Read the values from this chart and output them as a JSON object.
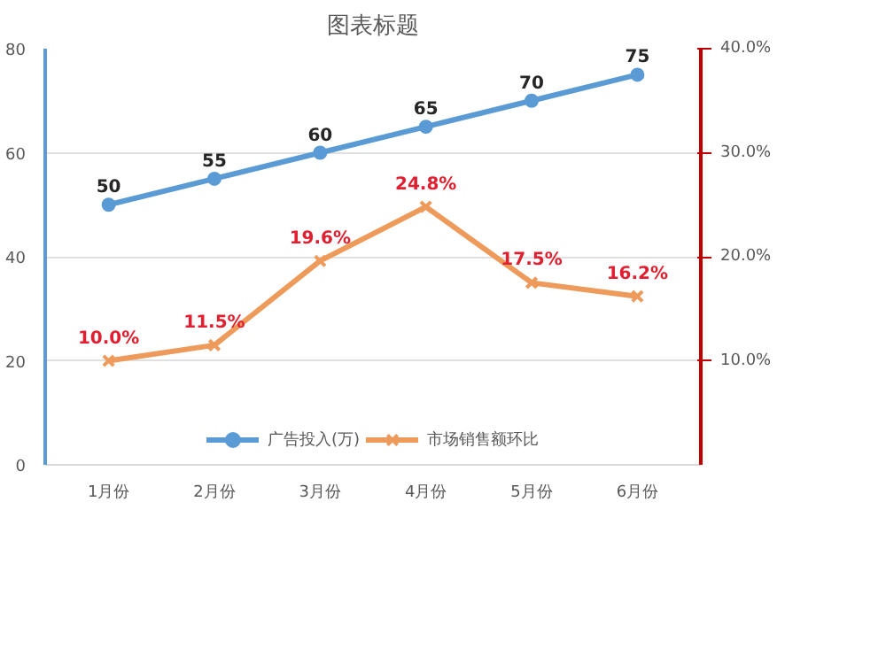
{
  "chart_data": {
    "type": "line",
    "title": "图表标题",
    "categories": [
      "1月份",
      "2月份",
      "3月份",
      "4月份",
      "5月份",
      "6月份"
    ],
    "series": [
      {
        "name": "广告投入(万)",
        "color": "#5b9bd5",
        "marker": "circle",
        "values": [
          50,
          55,
          60,
          65,
          70,
          75
        ],
        "value_labels": [
          "50",
          "55",
          "60",
          "65",
          "70",
          "75"
        ]
      },
      {
        "name": "市场销售额环比",
        "color": "#ed9a5b",
        "marker": "cross",
        "axis": "y2",
        "values": [
          10.0,
          11.5,
          19.6,
          24.8,
          17.5,
          16.2
        ],
        "value_labels": [
          "10.0%",
          "11.5%",
          "19.6%",
          "24.8%",
          "17.5%",
          "16.2%"
        ]
      }
    ],
    "ylim": [
      0,
      80
    ],
    "yticks": [
      0,
      20,
      40,
      60,
      80
    ],
    "y2lim": [
      0,
      40
    ],
    "y2ticks": [
      {
        "value": 10,
        "label": "10.0%"
      },
      {
        "value": 20,
        "label": "20.0%"
      },
      {
        "value": 30,
        "label": "30.0%"
      },
      {
        "value": 40,
        "label": "40.0%"
      }
    ],
    "grid": "y",
    "legend": "bottom"
  }
}
